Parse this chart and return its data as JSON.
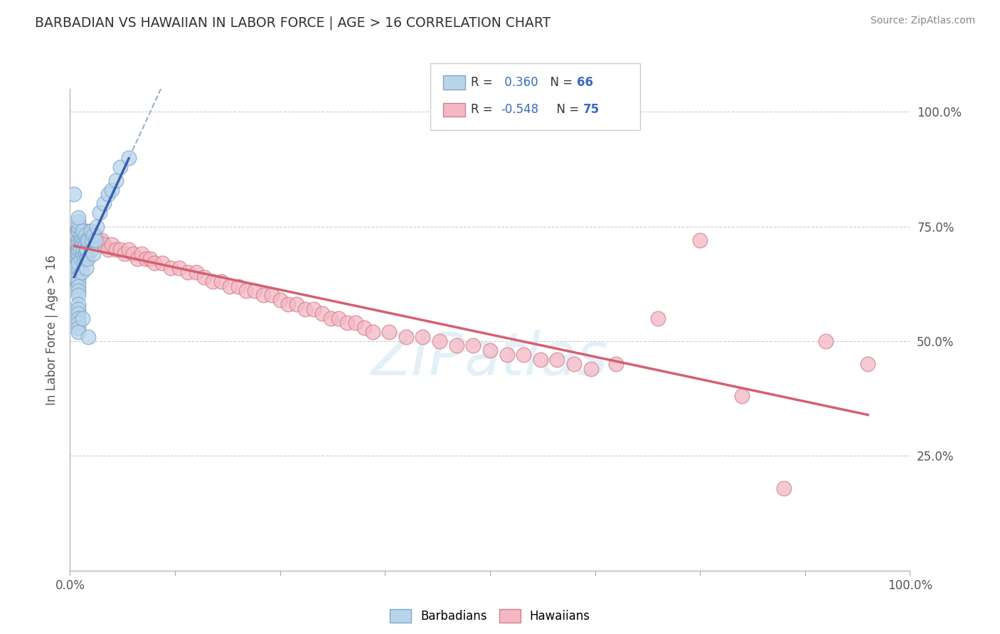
{
  "title": "BARBADIAN VS HAWAIIAN IN LABOR FORCE | AGE > 16 CORRELATION CHART",
  "source": "Source: ZipAtlas.com",
  "ylabel": "In Labor Force | Age > 16",
  "xlim": [
    0.0,
    1.0
  ],
  "ylim": [
    0.0,
    1.05
  ],
  "x_tick_positions": [
    0.0,
    0.125,
    0.25,
    0.375,
    0.5,
    0.625,
    0.75,
    0.875,
    1.0
  ],
  "x_tick_labels_show": [
    "0.0%",
    "",
    "",
    "",
    "",
    "",
    "",
    "",
    "100.0%"
  ],
  "y_tick_positions": [
    0.0,
    0.25,
    0.5,
    0.75,
    1.0
  ],
  "y_tick_labels": [
    "",
    "25.0%",
    "50.0%",
    "75.0%",
    "100.0%"
  ],
  "legend_r1_label": "R = ",
  "legend_r1_val": " 0.360",
  "legend_n1_label": "  N = ",
  "legend_n1_val": "66",
  "legend_r2_label": "R = ",
  "legend_r2_val": "-0.548",
  "legend_n2_label": "  N = ",
  "legend_n2_val": "75",
  "color_blue": "#b8d4ea",
  "color_pink": "#f4b8c4",
  "line_blue": "#3a5faa",
  "line_pink": "#d46070",
  "line_dash": "#9ab0cc",
  "watermark": "ZIPatlas",
  "grid_color": "#cccccc",
  "barbadian_x": [
    0.005,
    0.007,
    0.008,
    0.009,
    0.01,
    0.01,
    0.01,
    0.01,
    0.01,
    0.01,
    0.01,
    0.01,
    0.01,
    0.01,
    0.01,
    0.01,
    0.01,
    0.01,
    0.01,
    0.01,
    0.01,
    0.01,
    0.01,
    0.01,
    0.01,
    0.01,
    0.01,
    0.01,
    0.012,
    0.012,
    0.013,
    0.013,
    0.014,
    0.014,
    0.015,
    0.015,
    0.015,
    0.016,
    0.017,
    0.017,
    0.018,
    0.018,
    0.018,
    0.019,
    0.019,
    0.019,
    0.02,
    0.02,
    0.021,
    0.022,
    0.025,
    0.025,
    0.026,
    0.028,
    0.028,
    0.03,
    0.032,
    0.035,
    0.04,
    0.045,
    0.05,
    0.055,
    0.06,
    0.07,
    0.015,
    0.022
  ],
  "barbadian_y": [
    0.82,
    0.73,
    0.68,
    0.7,
    0.68,
    0.69,
    0.7,
    0.71,
    0.72,
    0.65,
    0.66,
    0.67,
    0.64,
    0.63,
    0.62,
    0.61,
    0.6,
    0.74,
    0.75,
    0.76,
    0.77,
    0.58,
    0.57,
    0.56,
    0.55,
    0.54,
    0.53,
    0.52,
    0.72,
    0.7,
    0.73,
    0.68,
    0.72,
    0.65,
    0.74,
    0.71,
    0.69,
    0.7,
    0.72,
    0.68,
    0.71,
    0.69,
    0.73,
    0.7,
    0.68,
    0.66,
    0.72,
    0.7,
    0.68,
    0.72,
    0.74,
    0.7,
    0.72,
    0.73,
    0.69,
    0.72,
    0.75,
    0.78,
    0.8,
    0.82,
    0.83,
    0.85,
    0.88,
    0.9,
    0.55,
    0.51
  ],
  "hawaiian_x": [
    0.005,
    0.008,
    0.01,
    0.012,
    0.013,
    0.015,
    0.016,
    0.018,
    0.02,
    0.022,
    0.025,
    0.028,
    0.03,
    0.032,
    0.035,
    0.038,
    0.04,
    0.045,
    0.05,
    0.055,
    0.06,
    0.065,
    0.07,
    0.075,
    0.08,
    0.085,
    0.09,
    0.095,
    0.1,
    0.11,
    0.12,
    0.13,
    0.14,
    0.15,
    0.16,
    0.17,
    0.18,
    0.19,
    0.2,
    0.21,
    0.22,
    0.23,
    0.24,
    0.25,
    0.26,
    0.27,
    0.28,
    0.29,
    0.3,
    0.31,
    0.32,
    0.33,
    0.34,
    0.35,
    0.36,
    0.38,
    0.4,
    0.42,
    0.44,
    0.46,
    0.48,
    0.5,
    0.52,
    0.54,
    0.56,
    0.58,
    0.6,
    0.62,
    0.65,
    0.7,
    0.75,
    0.8,
    0.85,
    0.9,
    0.95
  ],
  "hawaiian_y": [
    0.72,
    0.74,
    0.72,
    0.73,
    0.74,
    0.73,
    0.72,
    0.73,
    0.74,
    0.72,
    0.73,
    0.72,
    0.73,
    0.72,
    0.71,
    0.72,
    0.71,
    0.7,
    0.71,
    0.7,
    0.7,
    0.69,
    0.7,
    0.69,
    0.68,
    0.69,
    0.68,
    0.68,
    0.67,
    0.67,
    0.66,
    0.66,
    0.65,
    0.65,
    0.64,
    0.63,
    0.63,
    0.62,
    0.62,
    0.61,
    0.61,
    0.6,
    0.6,
    0.59,
    0.58,
    0.58,
    0.57,
    0.57,
    0.56,
    0.55,
    0.55,
    0.54,
    0.54,
    0.53,
    0.52,
    0.52,
    0.51,
    0.51,
    0.5,
    0.49,
    0.49,
    0.48,
    0.47,
    0.47,
    0.46,
    0.46,
    0.45,
    0.44,
    0.45,
    0.55,
    0.72,
    0.38,
    0.18,
    0.5,
    0.45
  ]
}
